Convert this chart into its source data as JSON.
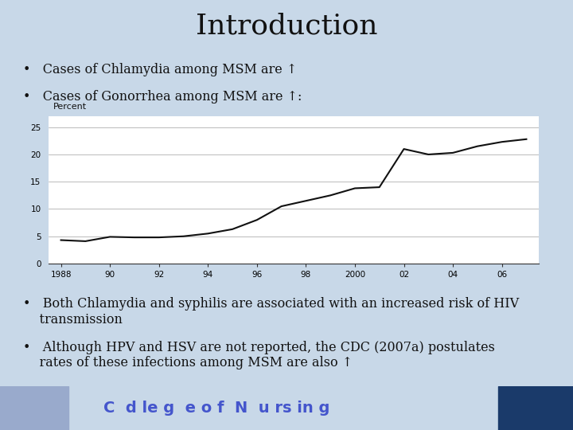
{
  "title": "Introduction",
  "title_fontsize": 26,
  "slide_bg": "#c8d8e8",
  "chart_bg": "#ffffff",
  "chart_border": "#aaaaaa",
  "bullet1": "Cases of Chlamydia among MSM are ↑",
  "bullet2": "Cases of Gonorrhea among MSM are ↑:",
  "bullet3": "Both Chlamydia and syphilis are associated with an increased risk of HIV\n    transmission",
  "bullet4": "Although HPV and HSV are not reported, the CDC (2007a) postulates\n    rates of these infections among MSM are also ↑",
  "footer_bg": "#8899bb",
  "footer_right_bg": "#1a3a6a",
  "footer_text": "C  d le g  e o f  N  u rs in g",
  "footer_text_color": "#4455cc",
  "ylabel": "Percent",
  "xtick_labels": [
    "1988",
    "90",
    "92",
    "94",
    "96",
    "98",
    "2000",
    "02",
    "04",
    "06"
  ],
  "xtick_positions": [
    1988,
    1990,
    1992,
    1994,
    1996,
    1998,
    2000,
    2002,
    2004,
    2006
  ],
  "ytick_labels": [
    "0",
    "5",
    "10",
    "15",
    "20",
    "25"
  ],
  "ytick_positions": [
    0,
    5,
    10,
    15,
    20,
    25
  ],
  "ylim": [
    0,
    27
  ],
  "xlim": [
    1987.5,
    2007.5
  ],
  "line_color": "#111111",
  "line_width": 1.5,
  "x_data": [
    1988,
    1989,
    1990,
    1991,
    1992,
    1993,
    1994,
    1995,
    1996,
    1997,
    1998,
    1999,
    2000,
    2001,
    2002,
    2003,
    2004,
    2005,
    2006,
    2007
  ],
  "y_data": [
    4.3,
    4.1,
    4.9,
    4.8,
    4.8,
    5.0,
    5.5,
    6.3,
    8.0,
    10.5,
    11.5,
    12.5,
    13.8,
    14.0,
    21.0,
    20.0,
    20.3,
    21.5,
    22.3,
    22.8
  ],
  "text_color": "#111111",
  "bullet_fontsize": 11.5,
  "chart_ylabel_fontsize": 8
}
